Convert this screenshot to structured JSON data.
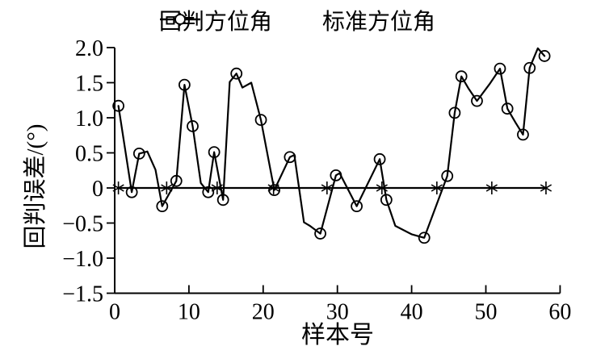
{
  "chart_data": {
    "type": "line",
    "title": "",
    "xlabel": "样本号",
    "ylabel": "回判误差/(°)",
    "xlim": [
      0,
      60
    ],
    "ylim": [
      -1.5,
      2.0
    ],
    "grid": false,
    "xtick_values": [
      0,
      10,
      20,
      30,
      40,
      50,
      60
    ],
    "xtick_labels": [
      "0",
      "10",
      "20",
      "30",
      "40",
      "50",
      "60"
    ],
    "ytick_values": [
      2.0,
      1.5,
      1.0,
      0.5,
      0,
      -0.5,
      -1.0,
      -1.5
    ],
    "ytick_labels": [
      "2.0",
      "1.5",
      "1.0",
      "0.5",
      "0",
      "−0.5",
      "−1.0",
      "−1.5"
    ],
    "legend": {
      "position": "top-center",
      "items": [
        {
          "label": "回判方位角",
          "marker": "asterisk"
        },
        {
          "label": "标准方位角",
          "marker": "circle"
        }
      ]
    },
    "line_color": "#000000",
    "series": [
      {
        "name": "回判方位角",
        "marker": "asterisk",
        "shape": "horizontal-line",
        "y_value": 0,
        "x_start": 0.4,
        "x_end": 58.2,
        "marker_x": [
          0.5,
          7,
          13.8,
          21.4,
          28.6,
          36,
          43.4,
          50.8,
          58.1
        ]
      },
      {
        "name": "标准方位角",
        "marker": "circle",
        "points_format": "[sample_no, error_deg, has_circle_marker]",
        "points": [
          [
            0.5,
            1.17,
            1
          ],
          [
            2.3,
            -0.06,
            1
          ],
          [
            3.3,
            0.49,
            1
          ],
          [
            4.4,
            0.52,
            0
          ],
          [
            5.5,
            0.26,
            0
          ],
          [
            6.4,
            -0.26,
            1
          ],
          [
            8.3,
            0.1,
            1
          ],
          [
            9.4,
            1.47,
            1
          ],
          [
            10.5,
            0.88,
            1
          ],
          [
            11.6,
            0.07,
            0
          ],
          [
            12.6,
            -0.06,
            1
          ],
          [
            13.4,
            0.51,
            1
          ],
          [
            14.6,
            -0.17,
            1
          ],
          [
            15.5,
            1.51,
            0
          ],
          [
            16.4,
            1.63,
            1
          ],
          [
            17.2,
            1.43,
            0
          ],
          [
            18.4,
            1.5,
            0
          ],
          [
            19.7,
            0.97,
            1
          ],
          [
            21.5,
            -0.03,
            1
          ],
          [
            23.6,
            0.44,
            1
          ],
          [
            24.2,
            0.47,
            0
          ],
          [
            25.5,
            -0.49,
            0
          ],
          [
            26.3,
            -0.54,
            0
          ],
          [
            27.7,
            -0.65,
            1
          ],
          [
            29.8,
            0.18,
            1
          ],
          [
            30.3,
            0.21,
            0
          ],
          [
            32.6,
            -0.26,
            1
          ],
          [
            35.7,
            0.41,
            1
          ],
          [
            36.6,
            -0.17,
            1
          ],
          [
            37.8,
            -0.54,
            0
          ],
          [
            40.0,
            -0.66,
            0
          ],
          [
            41.7,
            -0.71,
            1
          ],
          [
            44.8,
            0.17,
            1
          ],
          [
            45.8,
            1.07,
            1
          ],
          [
            46.7,
            1.59,
            1
          ],
          [
            47.7,
            1.41,
            0
          ],
          [
            48.8,
            1.24,
            1
          ],
          [
            50.5,
            1.48,
            0
          ],
          [
            51.9,
            1.7,
            1
          ],
          [
            52.9,
            1.13,
            1
          ],
          [
            54.0,
            0.93,
            0
          ],
          [
            55.0,
            0.76,
            1
          ],
          [
            55.9,
            1.71,
            1
          ],
          [
            57.0,
            1.99,
            0
          ],
          [
            57.9,
            1.88,
            1
          ]
        ]
      }
    ]
  }
}
